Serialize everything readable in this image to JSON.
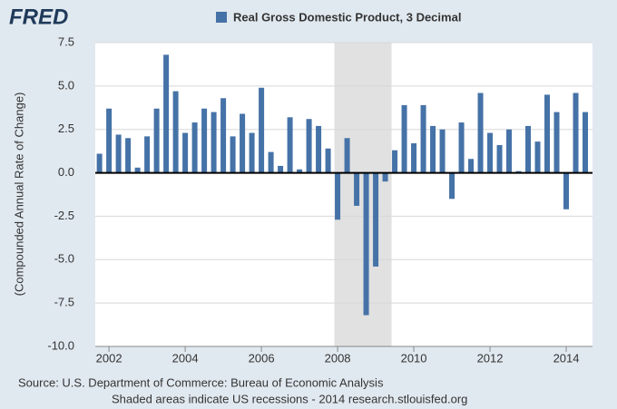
{
  "logo": "FRED",
  "chart_data": {
    "type": "bar",
    "y_label": "(Compounded Annual Rate of Change)",
    "source": "Source: U.S. Department of Commerce: Bureau of Economic Analysis",
    "note": "Shaded areas indicate US recessions - 2014 research.stlouisfed.org",
    "recessions": [
      [
        2007.917,
        2009.417
      ]
    ],
    "x": [
      2001.75,
      2002,
      2002.25,
      2002.5,
      2002.75,
      2003,
      2003.25,
      2003.5,
      2003.75,
      2004,
      2004.25,
      2004.5,
      2004.75,
      2005,
      2005.25,
      2005.5,
      2005.75,
      2006,
      2006.25,
      2006.5,
      2006.75,
      2007,
      2007.25,
      2007.5,
      2007.75,
      2008,
      2008.25,
      2008.5,
      2008.75,
      2009,
      2009.25,
      2009.5,
      2009.75,
      2010,
      2010.25,
      2010.5,
      2010.75,
      2011,
      2011.25,
      2011.5,
      2011.75,
      2012,
      2012.25,
      2012.5,
      2012.75,
      2013,
      2013.25,
      2013.5,
      2013.75,
      2014,
      2014.25,
      2014.5
    ],
    "series": [
      {
        "name": "Real Gross Domestic Product, 3 Decimal",
        "color": "#4572a7",
        "values": [
          1.1,
          3.7,
          2.2,
          2.0,
          0.3,
          2.1,
          3.7,
          6.8,
          4.7,
          2.3,
          2.9,
          3.7,
          3.5,
          4.3,
          2.1,
          3.4,
          2.3,
          4.9,
          1.2,
          0.4,
          3.2,
          0.2,
          3.1,
          2.7,
          1.4,
          -2.7,
          2.0,
          -1.9,
          -8.2,
          -5.4,
          -0.5,
          1.3,
          3.9,
          1.7,
          3.9,
          2.7,
          2.5,
          -1.5,
          2.9,
          0.8,
          4.6,
          2.3,
          1.6,
          2.5,
          0.1,
          2.7,
          1.8,
          4.5,
          3.5,
          -2.1,
          4.6,
          3.5
        ]
      }
    ],
    "xlim": [
      2001.64,
      2014.69
    ],
    "xticks": [
      2002,
      2004,
      2006,
      2008,
      2010,
      2012,
      2014
    ],
    "ylim": [
      -10,
      7.5
    ],
    "yticks": [
      7.5,
      {
        "value": 5,
        "label": "5.0"
      },
      2.5,
      {
        "value": 0,
        "label": "0.0"
      },
      -2.5,
      {
        "value": -5,
        "label": "-5.0"
      },
      -7.5,
      {
        "value": -10,
        "label": "-10.0"
      }
    ],
    "grid": true
  }
}
